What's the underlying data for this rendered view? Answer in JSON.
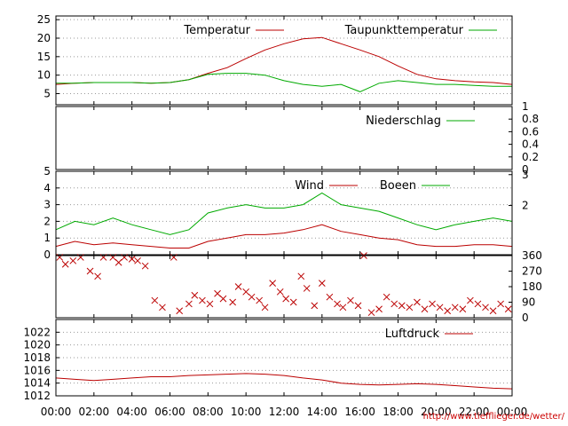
{
  "credit_link": "http://www.tiefflieger.de/wetter/",
  "colors": {
    "red": "#bb0000",
    "green": "#00aa00",
    "grid": "#999999",
    "axis": "#000000"
  },
  "chart_data": [
    {
      "id": "temp",
      "type": "line",
      "ylim": [
        2,
        26
      ],
      "left_ticks": [
        "5",
        "10",
        "15",
        "20",
        "25"
      ],
      "left_tick_values": [
        5,
        10,
        15,
        20,
        25
      ],
      "series": [
        {
          "name": "Temperatur",
          "color": "red",
          "x": [
            0,
            1,
            2,
            3,
            4,
            5,
            6,
            7,
            8,
            9,
            10,
            11,
            12,
            13,
            14,
            15,
            16,
            17,
            18,
            19,
            20,
            21,
            22,
            23,
            24
          ],
          "y": [
            7.5,
            7.8,
            8.0,
            8.0,
            8.0,
            7.8,
            8.0,
            8.8,
            10.5,
            12.0,
            14.5,
            16.8,
            18.5,
            19.8,
            20.2,
            18.5,
            16.8,
            15.0,
            12.5,
            10.2,
            9.0,
            8.5,
            8.2,
            8.0,
            7.5
          ]
        },
        {
          "name": "Taupunkttemperatur",
          "color": "green",
          "x": [
            0,
            1,
            2,
            3,
            4,
            5,
            6,
            7,
            8,
            9,
            10,
            11,
            12,
            13,
            14,
            15,
            16,
            17,
            18,
            19,
            20,
            21,
            22,
            23,
            24
          ],
          "y": [
            7.8,
            7.8,
            8.0,
            8.0,
            8.0,
            7.8,
            8.0,
            8.8,
            10.2,
            10.5,
            10.5,
            10.0,
            8.5,
            7.5,
            7.0,
            7.5,
            5.5,
            7.8,
            8.5,
            8.0,
            7.5,
            7.5,
            7.2,
            7.0,
            7.0
          ]
        }
      ]
    },
    {
      "id": "rain",
      "type": "line",
      "ylim": [
        0,
        1
      ],
      "right_ticks": [
        "1",
        "0.8",
        "0.6",
        "0.4",
        "0.2",
        "0"
      ],
      "right_tick_values": [
        1,
        0.8,
        0.6,
        0.4,
        0.2,
        0
      ],
      "series": [
        {
          "name": "Niederschlag",
          "color": "green",
          "x": [
            0,
            24
          ],
          "y": [
            0,
            0
          ]
        }
      ]
    },
    {
      "id": "wind",
      "type": "line",
      "ylim": [
        0,
        5
      ],
      "left_ticks": [
        "0",
        "1",
        "2",
        "3",
        "4",
        "5"
      ],
      "left_tick_values": [
        0,
        1,
        2,
        3,
        4,
        5
      ],
      "right_ticks": [
        "3",
        "2"
      ],
      "right_tick_values": [
        4.8,
        2.95
      ],
      "series": [
        {
          "name": "Wind",
          "color": "red",
          "x": [
            0,
            1,
            2,
            3,
            4,
            5,
            6,
            7,
            8,
            9,
            10,
            11,
            12,
            13,
            14,
            15,
            16,
            17,
            18,
            19,
            20,
            21,
            22,
            23,
            24
          ],
          "y": [
            0.5,
            0.8,
            0.6,
            0.7,
            0.6,
            0.5,
            0.4,
            0.4,
            0.8,
            1.0,
            1.2,
            1.2,
            1.3,
            1.5,
            1.8,
            1.4,
            1.2,
            1.0,
            0.9,
            0.6,
            0.5,
            0.5,
            0.6,
            0.6,
            0.5
          ]
        },
        {
          "name": "Boeen",
          "color": "green",
          "x": [
            0,
            1,
            2,
            3,
            4,
            5,
            6,
            7,
            8,
            9,
            10,
            11,
            12,
            13,
            14,
            15,
            16,
            17,
            18,
            19,
            20,
            21,
            22,
            23,
            24
          ],
          "y": [
            1.5,
            2.0,
            1.8,
            2.2,
            1.8,
            1.5,
            1.2,
            1.5,
            2.5,
            2.8,
            3.0,
            2.8,
            2.8,
            3.0,
            3.7,
            3.0,
            2.8,
            2.6,
            2.2,
            1.8,
            1.5,
            1.8,
            2.0,
            2.2,
            2.0
          ]
        }
      ]
    },
    {
      "id": "winddir",
      "type": "scatter",
      "ylim": [
        0,
        360
      ],
      "right_ticks": [
        "360",
        "270",
        "180",
        "90",
        "0"
      ],
      "right_tick_values": [
        360,
        270,
        180,
        90,
        0
      ],
      "series": [
        {
          "color": "red",
          "x": [
            0.2,
            0.5,
            0.9,
            1.3,
            1.8,
            2.2,
            2.5,
            3.0,
            3.3,
            3.6,
            4.0,
            4.3,
            4.7,
            5.2,
            5.6,
            6.2,
            6.5,
            7.0,
            7.3,
            7.7,
            8.1,
            8.5,
            8.8,
            9.3,
            9.6,
            10.0,
            10.3,
            10.7,
            11.0,
            11.4,
            11.8,
            12.1,
            12.5,
            12.9,
            13.2,
            13.6,
            14.0,
            14.4,
            14.8,
            15.1,
            15.5,
            15.9,
            16.2,
            16.6,
            17.0,
            17.4,
            17.8,
            18.2,
            18.6,
            19.0,
            19.4,
            19.8,
            20.2,
            20.6,
            21.0,
            21.4,
            21.8,
            22.2,
            22.6,
            23.0,
            23.4,
            23.8
          ],
          "y": [
            350,
            310,
            330,
            350,
            270,
            240,
            350,
            350,
            320,
            350,
            340,
            330,
            300,
            100,
            60,
            350,
            40,
            80,
            130,
            100,
            80,
            140,
            110,
            90,
            180,
            150,
            120,
            100,
            60,
            200,
            150,
            110,
            90,
            240,
            170,
            70,
            200,
            120,
            80,
            60,
            100,
            70,
            360,
            30,
            50,
            120,
            80,
            70,
            60,
            90,
            50,
            80,
            60,
            40,
            60,
            50,
            100,
            80,
            60,
            40,
            80,
            50
          ]
        }
      ]
    },
    {
      "id": "pressure",
      "type": "line",
      "ylim": [
        1012,
        1024
      ],
      "left_ticks": [
        "1012",
        "1014",
        "1016",
        "1018",
        "1020",
        "1022"
      ],
      "left_tick_values": [
        1012,
        1014,
        1016,
        1018,
        1020,
        1022
      ],
      "x_ticks": [
        "00:00",
        "02:00",
        "04:00",
        "06:00",
        "08:00",
        "10:00",
        "12:00",
        "14:00",
        "16:00",
        "18:00",
        "20:00",
        "22:00",
        "00:00"
      ],
      "x_tick_values": [
        0,
        2,
        4,
        6,
        8,
        10,
        12,
        14,
        16,
        18,
        20,
        22,
        24
      ],
      "series": [
        {
          "name": "Luftdruck",
          "color": "red",
          "x": [
            0,
            1,
            2,
            3,
            4,
            5,
            6,
            7,
            8,
            9,
            10,
            11,
            12,
            13,
            14,
            15,
            16,
            17,
            18,
            19,
            20,
            21,
            22,
            23,
            24
          ],
          "y": [
            1014.8,
            1014.6,
            1014.4,
            1014.6,
            1014.8,
            1015.0,
            1015.0,
            1015.2,
            1015.3,
            1015.4,
            1015.5,
            1015.4,
            1015.2,
            1014.8,
            1014.5,
            1014.0,
            1013.8,
            1013.7,
            1013.8,
            1013.9,
            1013.8,
            1013.6,
            1013.4,
            1013.2,
            1013.1
          ]
        }
      ]
    }
  ]
}
